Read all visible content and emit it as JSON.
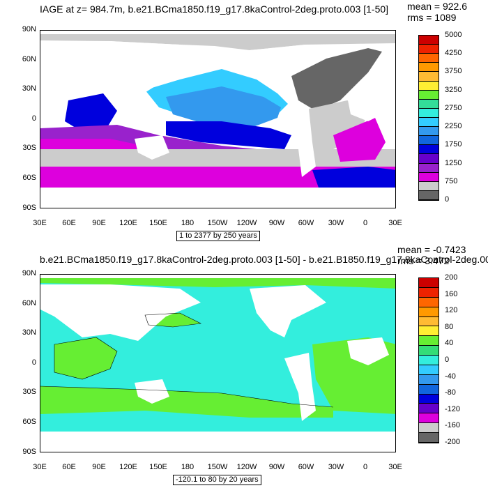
{
  "top": {
    "title": "IAGE at z= 984.7m, b.e21.BCma1850.f19_g17.8kaControl-2deg.proto.003 [1-50]",
    "mean": "mean = 922.6",
    "rms": "rms = 1089",
    "footer": "1 to 2377 by 250 years",
    "colorbar": {
      "labels": [
        "5000",
        "4250",
        "3750",
        "3250",
        "2750",
        "2250",
        "1750",
        "1250",
        "750",
        "0"
      ],
      "colors": [
        "#cc0000",
        "#ee2200",
        "#ff6600",
        "#ff9900",
        "#ffbb33",
        "#ffee33",
        "#66ee33",
        "#33dd99",
        "#33eedd",
        "#33ccff",
        "#3399ee",
        "#1166dd",
        "#0000dd",
        "#6600cc",
        "#9922cc",
        "#dd00dd",
        "#cccccc",
        "#666666"
      ]
    }
  },
  "bottom": {
    "title": "b.e21.BCma1850.f19_g17.8kaControl-2deg.proto.003 [1-50] - b.e21.B1850.f19_g17.8kaControl-2deg.00",
    "mean": "mean = -0.7423",
    "rms": "rms = 3.472",
    "footer": "-120.1 to 80 by 20 years",
    "colorbar": {
      "labels": [
        "200",
        "160",
        "120",
        "80",
        "40",
        "0",
        "-40",
        "-80",
        "-120",
        "-160",
        "-200"
      ],
      "colors": [
        "#cc0000",
        "#ee2200",
        "#ff6600",
        "#ff9900",
        "#ffbb33",
        "#ffee33",
        "#66ee33",
        "#33dd77",
        "#33eedd",
        "#33ccff",
        "#3399ee",
        "#1166dd",
        "#0000dd",
        "#6600cc",
        "#dd00dd",
        "#cccccc",
        "#666666"
      ]
    }
  },
  "axes": {
    "lat_ticks": [
      "90N",
      "60N",
      "30N",
      "0",
      "30S",
      "60S",
      "90S"
    ],
    "lon_ticks": [
      "30E",
      "60E",
      "90E",
      "120E",
      "150E",
      "180",
      "150W",
      "120W",
      "90W",
      "60W",
      "30W",
      "0",
      "30E"
    ]
  }
}
